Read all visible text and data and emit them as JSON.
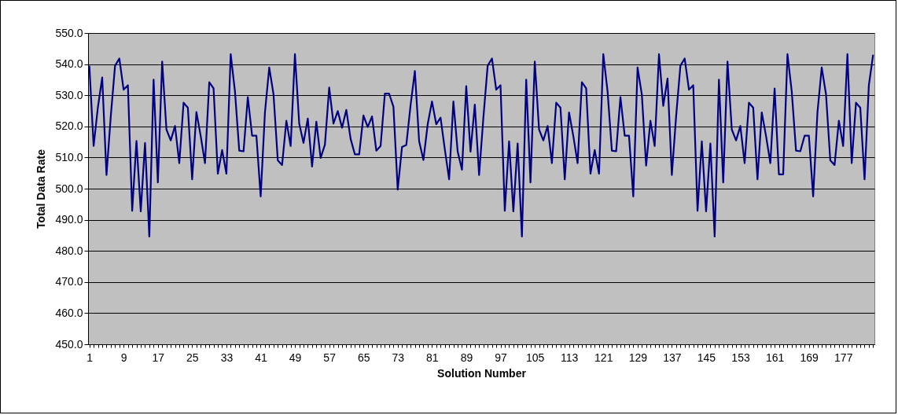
{
  "chart_data": {
    "type": "line",
    "xlabel": "Solution Number",
    "ylabel": "Total Data Rate",
    "categories": [
      "1",
      null,
      null,
      null,
      null,
      null,
      null,
      null,
      "9",
      null,
      null,
      null,
      null,
      null,
      null,
      null,
      "17",
      null,
      null,
      null,
      null,
      null,
      null,
      null,
      "25",
      null,
      null,
      null,
      null,
      null,
      null,
      null,
      "33",
      null,
      null,
      null,
      null,
      null,
      null,
      null,
      "41",
      null,
      null,
      null,
      null,
      null,
      null,
      null,
      "49",
      null,
      null,
      null,
      null,
      null,
      null,
      null,
      "57",
      null,
      null,
      null,
      null,
      null,
      null,
      null,
      "65",
      null,
      null,
      null,
      null,
      null,
      null,
      null,
      "73",
      null,
      null,
      null,
      null,
      null,
      null,
      null,
      "81",
      null,
      null,
      null,
      null,
      null,
      null,
      null,
      "89",
      null,
      null,
      null,
      null,
      null,
      null,
      null,
      "97",
      null,
      null,
      null,
      null,
      null,
      null,
      null,
      "105",
      null,
      null,
      null,
      null,
      null,
      null,
      null,
      "113",
      null,
      null,
      null,
      null,
      null,
      null,
      null,
      "121",
      null,
      null,
      null,
      null,
      null,
      null,
      null,
      "129",
      null,
      null,
      null,
      null,
      null,
      null,
      null,
      "137",
      null,
      null,
      null,
      null,
      null,
      null,
      null,
      "145",
      null,
      null,
      null,
      null,
      null,
      null,
      null,
      "153",
      null,
      null,
      null,
      null,
      null,
      null,
      null,
      "161",
      null,
      null,
      null,
      null,
      null,
      null,
      null,
      "169",
      null,
      null,
      null,
      null,
      null,
      null,
      null,
      "177",
      null,
      null,
      null,
      null,
      null,
      null,
      null
    ],
    "series": [
      {
        "color": "#000080",
        "values": [
          539.5,
          513.7,
          526.2,
          535.7,
          504.4,
          523.2,
          539.5,
          541.8,
          531.8,
          533.2,
          492.9,
          515.3,
          492.7,
          514.7,
          484.6,
          535.0,
          502.0,
          540.8,
          519.0,
          515.5,
          520.1,
          508.2,
          527.6,
          526.0,
          503.0,
          524.6,
          516.9,
          508.2,
          534.2,
          532.2,
          504.8,
          512.4,
          504.8,
          543.2,
          531.2,
          512.2,
          512.0,
          529.4,
          517.0,
          517.0,
          497.5,
          524.5,
          538.9,
          530.3,
          509.1,
          507.6,
          521.8,
          513.7,
          543.2,
          520.9,
          514.7,
          522.5,
          507.1,
          521.5,
          509.9,
          514.1,
          532.5,
          520.9,
          524.9,
          519.6,
          525.3,
          516.0,
          511.0,
          511.0,
          523.5,
          519.8,
          523.2,
          512.2,
          513.7,
          530.5,
          530.5,
          526.3,
          499.7,
          513.4,
          514.0,
          526.8,
          537.8,
          515.2,
          509.2,
          520.7,
          528.0,
          520.7,
          522.8,
          512.6,
          503.0,
          528.0,
          511.9,
          506.1,
          532.9,
          511.9,
          527.0,
          504.4,
          522.8,
          539.5,
          541.8,
          531.8,
          533.2,
          492.9,
          515.2,
          492.7,
          514.5,
          484.6,
          535.0,
          502.0,
          540.8,
          519.0,
          515.5,
          520.1,
          508.2,
          527.6,
          526.0,
          503.0,
          524.5,
          516.9,
          508.2,
          534.2,
          532.2,
          504.8,
          512.4,
          504.8,
          543.2,
          531.2,
          512.2,
          512.0,
          529.4,
          517.0,
          517.0,
          497.5,
          538.9,
          530.2,
          507.4,
          521.8,
          513.7,
          543.2,
          526.6,
          535.4,
          504.4,
          523.2,
          539.5,
          541.8,
          531.8,
          533.2,
          492.9,
          515.2,
          492.7,
          514.5,
          484.6,
          535.0,
          502.0,
          540.8,
          519.0,
          515.5,
          520.1,
          508.2,
          527.6,
          526.0,
          503.0,
          524.5,
          516.9,
          508.2,
          532.2,
          504.6,
          504.6,
          543.2,
          531.2,
          512.2,
          512.0,
          517.0,
          517.0,
          497.5,
          524.5,
          538.9,
          530.3,
          509.1,
          507.6,
          521.8,
          513.7,
          543.2,
          508.2,
          527.6,
          526.0,
          503.0,
          533.2,
          543.0
        ]
      }
    ],
    "ylim": [
      450,
      550
    ],
    "yticks": [
      {
        "value": 450,
        "label": "450.0"
      },
      {
        "value": 460,
        "label": "460.0"
      },
      {
        "value": 470,
        "label": "470.0"
      },
      {
        "value": 480,
        "label": "480.0"
      },
      {
        "value": 490,
        "label": "490.0"
      },
      {
        "value": 500,
        "label": "500.0"
      },
      {
        "value": 510,
        "label": "510.0"
      },
      {
        "value": 520,
        "label": "520.0"
      },
      {
        "value": 530,
        "label": "530.0"
      },
      {
        "value": 540,
        "label": "540.0"
      },
      {
        "value": 550,
        "label": "550.0"
      }
    ],
    "grid": "y",
    "marker": "none",
    "line_style": "solid"
  }
}
